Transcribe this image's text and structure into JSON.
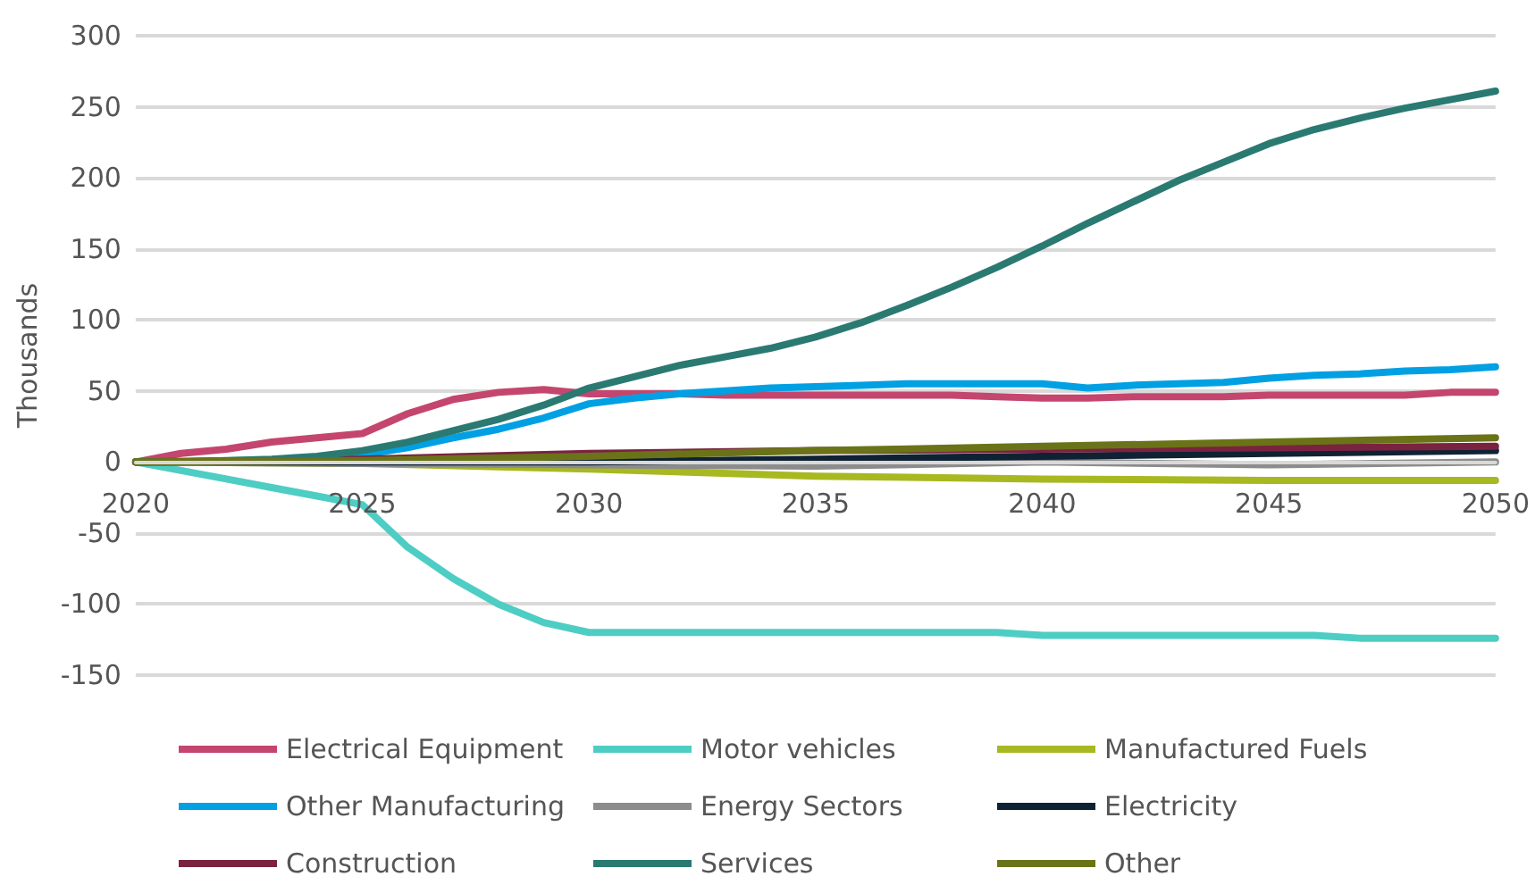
{
  "chart_data": {
    "type": "line",
    "ylabel": "Thousands",
    "xlim": [
      2020,
      2050
    ],
    "xticks": [
      2020,
      2025,
      2030,
      2035,
      2040,
      2045,
      2050
    ],
    "ylim": [
      -150,
      300
    ],
    "yticks": [
      -150,
      -100,
      -50,
      0,
      50,
      100,
      150,
      200,
      250,
      300
    ],
    "grid": "y",
    "legend": "bottom",
    "marker": "none",
    "line_style": "solid",
    "x": [
      2020,
      2021,
      2022,
      2023,
      2024,
      2025,
      2026,
      2027,
      2028,
      2029,
      2030,
      2031,
      2032,
      2033,
      2034,
      2035,
      2036,
      2037,
      2038,
      2039,
      2040,
      2041,
      2042,
      2043,
      2044,
      2045,
      2046,
      2047,
      2048,
      2049,
      2050
    ],
    "series": [
      {
        "name": "Electrical Equipment",
        "color": "#c4466e",
        "values": [
          0,
          6,
          9,
          14,
          17,
          20,
          34,
          44,
          49,
          51,
          48,
          48,
          48,
          47,
          47,
          47,
          47,
          47,
          47,
          46,
          45,
          45,
          46,
          46,
          46,
          47,
          47,
          47,
          47,
          49,
          49
        ]
      },
      {
        "name": "Motor vehicles",
        "color": "#4ecdc4",
        "values": [
          0,
          -6,
          -12,
          -18,
          -24,
          -30,
          -60,
          -82,
          -100,
          -113,
          -120,
          -120,
          -120,
          -120,
          -120,
          -120,
          -120,
          -120,
          -120,
          -120,
          -122,
          -122,
          -122,
          -122,
          -122,
          -122,
          -122,
          -124,
          -124,
          -124,
          -124
        ]
      },
      {
        "name": "Manufactured Fuels",
        "color": "#a8b820",
        "x": [
          2020,
          2025,
          2030,
          2035,
          2040,
          2045,
          2050
        ],
        "values": [
          0,
          -1,
          -5,
          -10,
          -12,
          -13,
          -13
        ]
      },
      {
        "name": "Other Manufacturing",
        "color": "#00a0e3",
        "values": [
          null,
          null,
          null,
          null,
          3,
          5,
          10,
          17,
          23,
          31,
          41,
          45,
          48,
          50,
          52,
          53,
          54,
          55,
          55,
          55,
          55,
          52,
          54,
          55,
          56,
          59,
          61,
          62,
          64,
          65,
          67
        ]
      },
      {
        "name": "Energy Sectors",
        "color": "#8c8c8c",
        "x": [
          2020,
          2025,
          2030,
          2035,
          2040,
          2045,
          2050
        ],
        "values": [
          0,
          -1,
          -2,
          -3,
          0,
          -2,
          0
        ]
      },
      {
        "name": "Electricity",
        "color": "#0f2233",
        "x": [
          2020,
          2025,
          2030,
          2035,
          2040,
          2045,
          2050
        ],
        "values": [
          0,
          0,
          0,
          2,
          4,
          6,
          8
        ]
      },
      {
        "name": "Construction",
        "color": "#7a2340",
        "x": [
          2020,
          2025,
          2030,
          2035,
          2040,
          2045,
          2050
        ],
        "values": [
          0,
          2,
          6,
          8,
          9,
          10,
          11
        ]
      },
      {
        "name": "Services",
        "color": "#2a7a72",
        "values": [
          0,
          0,
          1,
          2,
          4,
          8,
          14,
          22,
          30,
          40,
          52,
          60,
          68,
          74,
          80,
          88,
          98,
          110,
          123,
          137,
          152,
          168,
          183,
          198,
          211,
          224,
          234,
          242,
          249,
          255,
          261
        ]
      },
      {
        "name": "Other",
        "color": "#6b7318",
        "x": [
          2020,
          2025,
          2030,
          2035,
          2040,
          2045,
          2050
        ],
        "values": [
          0,
          1,
          4,
          8,
          11,
          14,
          17
        ]
      }
    ]
  }
}
